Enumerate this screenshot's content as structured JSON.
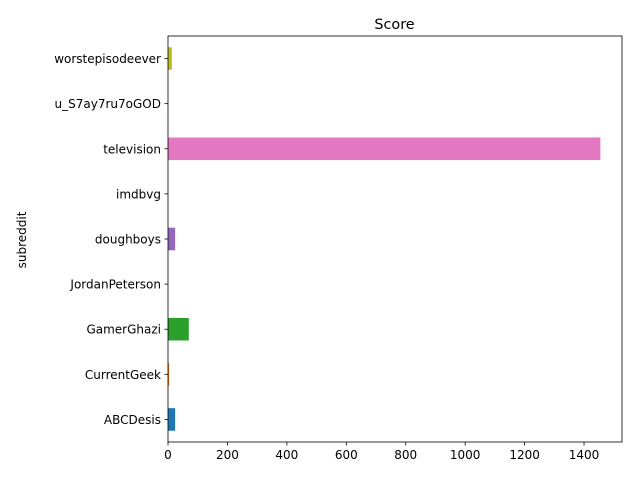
{
  "chart_data": {
    "type": "bar",
    "orientation": "horizontal",
    "title": "Score",
    "xlabel": "",
    "ylabel": "subreddit",
    "categories": [
      "ABCDesis",
      "CurrentGeek",
      "GamerGhazi",
      "JordanPeterson",
      "doughboys",
      "imdbvg",
      "television",
      "u_S7ay7ru7oGOD",
      "worstepisodeever"
    ],
    "values": [
      24,
      4,
      70,
      0,
      24,
      0,
      1455,
      0,
      13
    ],
    "colors": [
      "#1f77b4",
      "#ff7f0e",
      "#2ca02c",
      "#d62728",
      "#9467bd",
      "#8c564b",
      "#e377c2",
      "#7f7f7f",
      "#bcbd22"
    ],
    "xlim": [
      0,
      1527.75
    ],
    "xticks": [
      0,
      200,
      400,
      600,
      800,
      1000,
      1200,
      1400
    ],
    "grid": false,
    "legend": "none"
  }
}
